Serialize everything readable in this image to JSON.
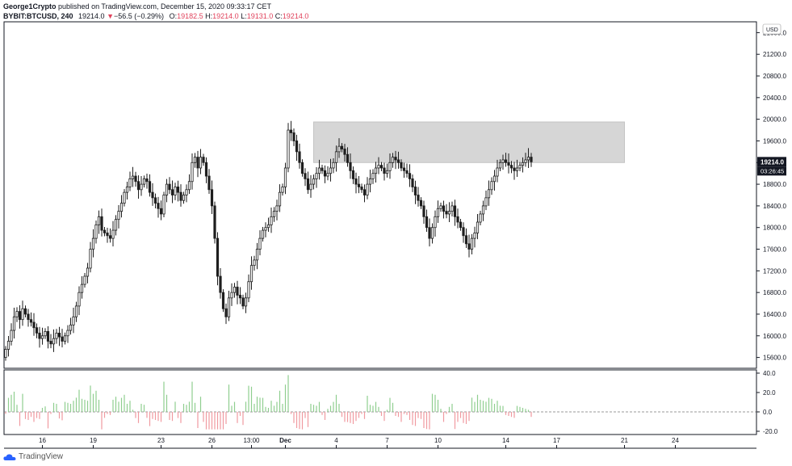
{
  "header": {
    "author": "George1Crypto",
    "published_text": "published on TradingView.com, December 15, 2020 09:33:17 CET",
    "symbol": "BYBIT:BTCUSD, 240",
    "last": "19214.0",
    "change_arrow": "▼",
    "change": "−56.5 (−0.29%)",
    "o_label": "O:",
    "o_value": "19182.5",
    "h_label": "H:",
    "h_value": "19214.0",
    "l_label": "L:",
    "l_value": "19131.0",
    "c_label": "C:",
    "c_value": "19214.0"
  },
  "footer": {
    "brand": "TradingView"
  },
  "colors": {
    "up": "#26a69a",
    "down": "#ef5350",
    "candle": "#1e1e1e",
    "zone": "#d6d6d6",
    "hist_up": "#8fce8f",
    "hist_down": "#f09aa0"
  },
  "chart_data": {
    "type": "candlestick",
    "currency_label": "USD",
    "price_axis": {
      "range": [
        15400,
        21800
      ],
      "ticks": [
        "21600.0",
        "21200.0",
        "20800.0",
        "20400.0",
        "20000.0",
        "19600.0",
        "19200.0",
        "18800.0",
        "18400.0",
        "18000.0",
        "17600.0",
        "17200.0",
        "16800.0",
        "16400.0",
        "16000.0",
        "15600.0"
      ],
      "last_price_label": "19214.0",
      "countdown_label": "03:26:45"
    },
    "resistance_zone": {
      "low": 19200,
      "high": 19950
    },
    "x_axis": {
      "ticks": [
        {
          "label": "16",
          "bar": 13
        },
        {
          "label": "19",
          "bar": 31
        },
        {
          "label": "23",
          "bar": 55
        },
        {
          "label": "26",
          "bar": 73
        },
        {
          "label": "13:00",
          "bar": 87
        },
        {
          "label": "Dec",
          "bar": 99
        },
        {
          "label": "4",
          "bar": 117
        },
        {
          "label": "7",
          "bar": 135
        },
        {
          "label": "10",
          "bar": 153
        },
        {
          "label": "14",
          "bar": 177
        },
        {
          "label": "17",
          "bar": 195
        },
        {
          "label": "21",
          "bar": 219
        },
        {
          "label": "24",
          "bar": 237
        }
      ]
    },
    "close": [
      15750,
      15900,
      16100,
      16350,
      16450,
      16300,
      16500,
      16400,
      16300,
      16250,
      16150,
      16050,
      15950,
      16000,
      16080,
      15900,
      15850,
      15950,
      16050,
      15980,
      15900,
      16000,
      16100,
      16200,
      16350,
      16550,
      16800,
      16950,
      17100,
      17250,
      17600,
      17800,
      18050,
      18200,
      17950,
      17900,
      17850,
      17800,
      17950,
      18150,
      18300,
      18450,
      18650,
      18750,
      18900,
      18950,
      18850,
      18700,
      18800,
      18900,
      18850,
      18650,
      18550,
      18450,
      18350,
      18250,
      18600,
      18800,
      18700,
      18600,
      18750,
      18650,
      18500,
      18600,
      18700,
      18850,
      19200,
      19300,
      19100,
      19300,
      19200,
      18950,
      18700,
      18400,
      17800,
      17100,
      16800,
      16500,
      16350,
      16700,
      16800,
      16900,
      16750,
      16700,
      16550,
      16700,
      17000,
      17300,
      17400,
      17600,
      17800,
      17950,
      18000,
      18050,
      18200,
      18300,
      18400,
      18650,
      18750,
      19100,
      19800,
      19750,
      19600,
      19400,
      19200,
      19000,
      18900,
      18700,
      18800,
      18900,
      19000,
      19100,
      19050,
      18950,
      19000,
      19100,
      19200,
      19400,
      19500,
      19450,
      19350,
      19200,
      19050,
      18900,
      18800,
      18750,
      18700,
      18600,
      18800,
      18900,
      19000,
      19100,
      19150,
      19100,
      19000,
      19050,
      19200,
      19300,
      19250,
      19200,
      19100,
      19050,
      19000,
      18900,
      18750,
      18600,
      18500,
      18400,
      18200,
      18000,
      17800,
      18000,
      18200,
      18350,
      18400,
      18300,
      18250,
      18300,
      18400,
      18200,
      18100,
      18000,
      17850,
      17700,
      17600,
      17800,
      17900,
      18100,
      18250,
      18400,
      18550,
      18700,
      18850,
      18950,
      19100,
      19200,
      19250,
      19200,
      19150,
      19100,
      19050,
      19100,
      19150,
      19200,
      19250,
      19300,
      19214
    ],
    "volume_oscillator": {
      "range": [
        -20,
        40
      ],
      "ticks": [
        "40.0",
        "20.0",
        "0.0",
        "-20.0"
      ]
    }
  }
}
